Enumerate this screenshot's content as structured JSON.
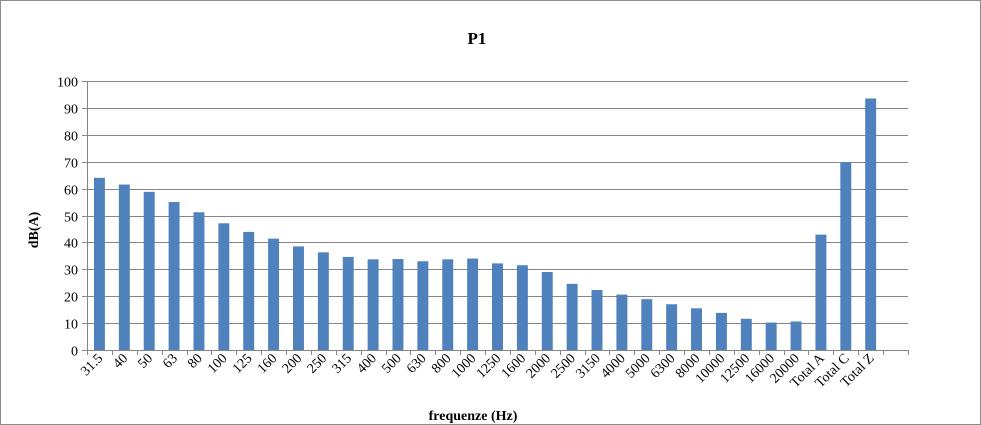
{
  "chart_data": {
    "type": "bar",
    "title": "P1",
    "xlabel": "frequenze (Hz)",
    "ylabel": "dB(A)",
    "ylim": [
      0,
      100
    ],
    "yticks": [
      "0",
      "10",
      "20",
      "30",
      "40",
      "50",
      "60",
      "70",
      "80",
      "90",
      "100"
    ],
    "grid": true,
    "legend": "none",
    "bar_color": "#4f81bd",
    "categories": [
      "31.5",
      "40",
      "50",
      "63",
      "80",
      "100",
      "125",
      "160",
      "200",
      "250",
      "315",
      "400",
      "500",
      "630",
      "800",
      "1000",
      "1250",
      "1600",
      "2000",
      "2500",
      "3150",
      "4000",
      "5000",
      "6300",
      "8000",
      "10000",
      "12500",
      "16000",
      "20000",
      "Total A",
      "Total C",
      "Total Z"
    ],
    "values": [
      64.0,
      61.5,
      58.8,
      55.0,
      51.2,
      47.1,
      43.9,
      41.4,
      38.5,
      36.3,
      34.6,
      33.7,
      33.8,
      33.0,
      33.7,
      34.0,
      32.2,
      31.5,
      29.0,
      24.6,
      22.3,
      20.6,
      18.9,
      17.0,
      15.5,
      13.8,
      11.6,
      10.2,
      10.6,
      42.9,
      69.9,
      93.5
    ]
  }
}
